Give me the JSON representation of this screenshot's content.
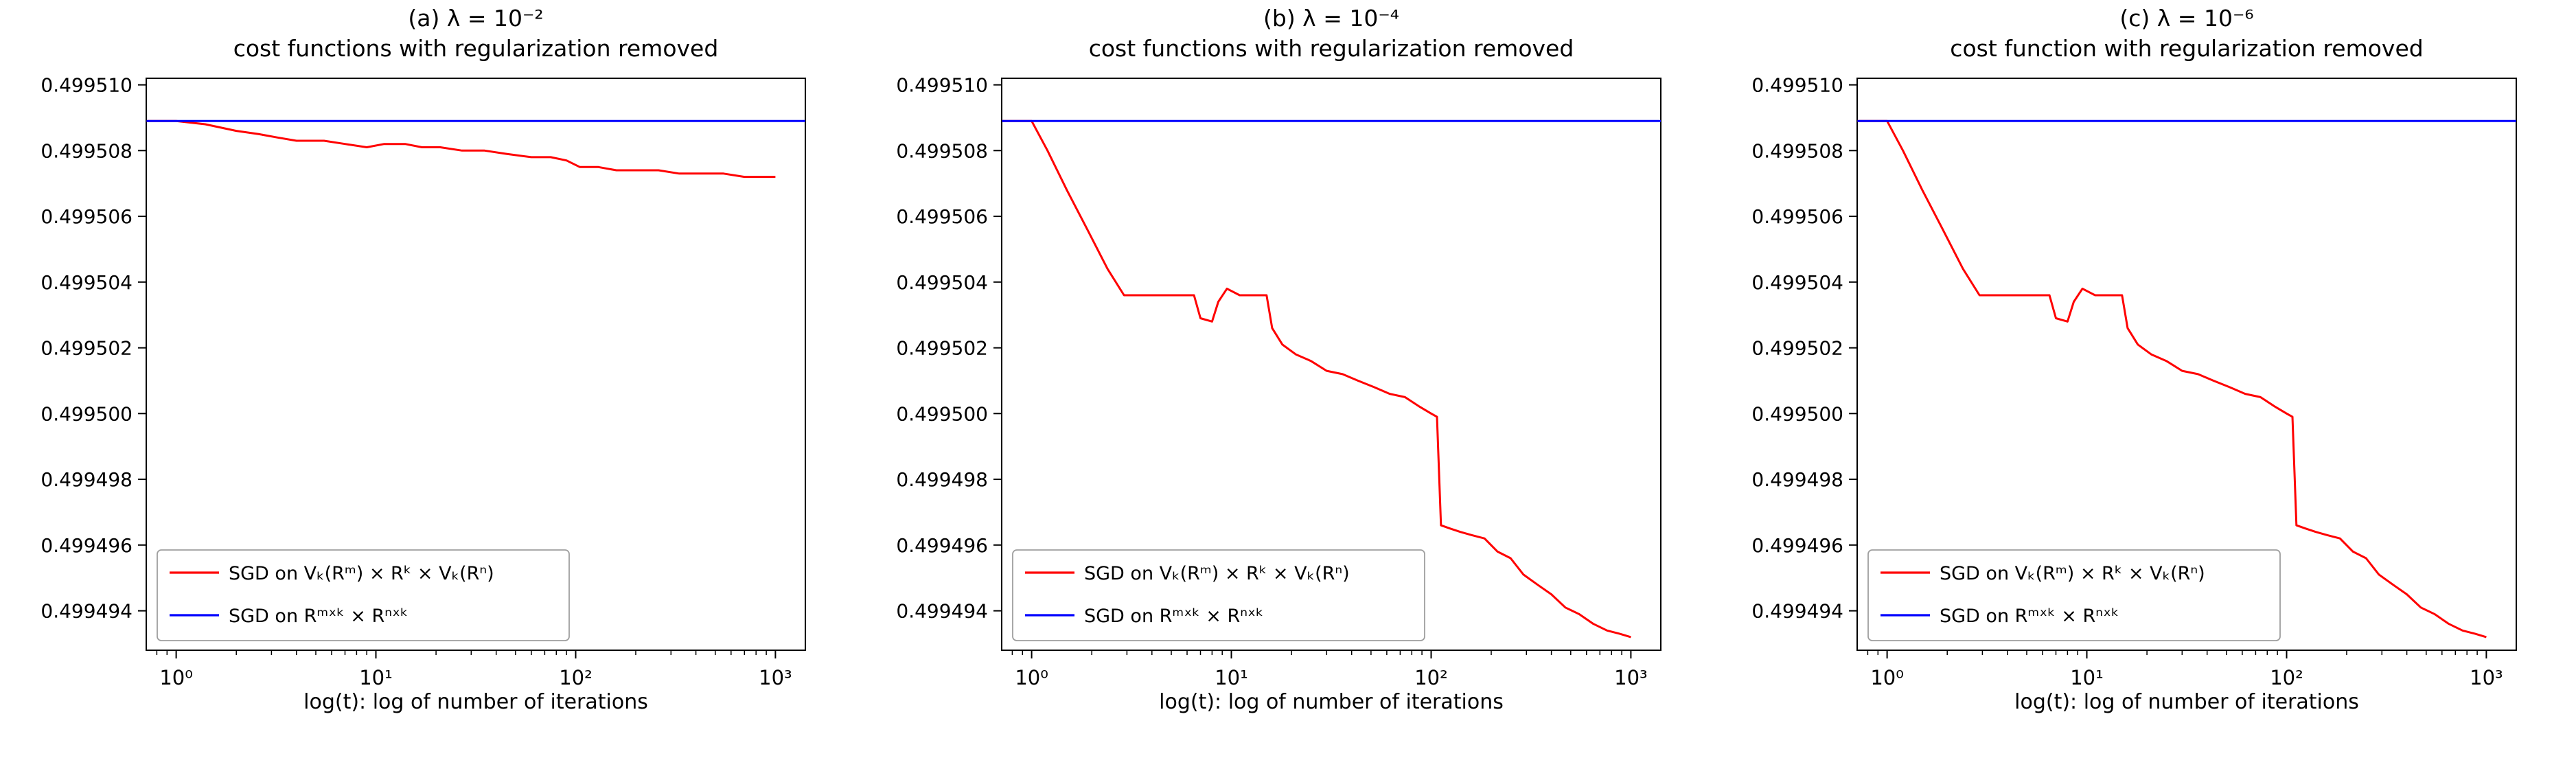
{
  "page": {
    "background": "#ffffff"
  },
  "chart_data": [
    {
      "type": "line",
      "letter_title": "(a) λ = 10⁻²",
      "title": "cost functions with regularization removed",
      "xlabel": "log(t): log of number of iterations",
      "xscale": "log",
      "xlim_log": [
        -0.15,
        3.15
      ],
      "ylim": [
        0.4994928,
        0.4995102
      ],
      "grid": false,
      "legend_position": "lower left",
      "x_ticks": [
        {
          "v": 1,
          "label": "10⁰"
        },
        {
          "v": 10,
          "label": "10¹"
        },
        {
          "v": 100,
          "label": "10²"
        },
        {
          "v": 1000,
          "label": "10³"
        }
      ],
      "y_ticks": [
        {
          "v": 0.499494,
          "label": "0.499494"
        },
        {
          "v": 0.499496,
          "label": "0.499496"
        },
        {
          "v": 0.499498,
          "label": "0.499498"
        },
        {
          "v": 0.4995,
          "label": "0.499500"
        },
        {
          "v": 0.499502,
          "label": "0.499502"
        },
        {
          "v": 0.499504,
          "label": "0.499504"
        },
        {
          "v": 0.499506,
          "label": "0.499506"
        },
        {
          "v": 0.499508,
          "label": "0.499508"
        },
        {
          "v": 0.49951,
          "label": "0.499510"
        }
      ],
      "series": [
        {
          "name": "SGD on Vₖ(Rᵐ) × Rᵏ × Vₖ(Rⁿ)",
          "color": "#ff0000",
          "points": [
            [
              0.71,
              0.4995089
            ],
            [
              1.0,
              0.4995089
            ],
            [
              1.4,
              0.4995088
            ],
            [
              2.0,
              0.4995086
            ],
            [
              2.6,
              0.4995085
            ],
            [
              3.2,
              0.4995084
            ],
            [
              4.0,
              0.4995083
            ],
            [
              5.5,
              0.4995083
            ],
            [
              7.0,
              0.4995082
            ],
            [
              9.0,
              0.4995081
            ],
            [
              11.0,
              0.4995082
            ],
            [
              14.0,
              0.4995082
            ],
            [
              17.0,
              0.4995081
            ],
            [
              21.0,
              0.4995081
            ],
            [
              27.0,
              0.499508
            ],
            [
              35.0,
              0.499508
            ],
            [
              45.0,
              0.4995079
            ],
            [
              60.0,
              0.4995078
            ],
            [
              75.0,
              0.4995078
            ],
            [
              90.0,
              0.4995077
            ],
            [
              105.0,
              0.4995075
            ],
            [
              130.0,
              0.4995075
            ],
            [
              160.0,
              0.4995074
            ],
            [
              200.0,
              0.4995074
            ],
            [
              260.0,
              0.4995074
            ],
            [
              330.0,
              0.4995073
            ],
            [
              420.0,
              0.4995073
            ],
            [
              550.0,
              0.4995073
            ],
            [
              700.0,
              0.4995072
            ],
            [
              850.0,
              0.4995072
            ],
            [
              1000.0,
              0.4995072
            ]
          ]
        },
        {
          "name": "SGD on Rᵐˣᵏ × Rⁿˣᵏ",
          "color": "#0000ff",
          "points": [
            [
              0.71,
              0.4995089
            ],
            [
              1413.0,
              0.4995089
            ]
          ]
        }
      ]
    },
    {
      "type": "line",
      "letter_title": "(b) λ = 10⁻⁴",
      "title": "cost functions with regularization removed",
      "xlabel": "log(t): log of number of iterations",
      "xscale": "log",
      "xlim_log": [
        -0.15,
        3.15
      ],
      "ylim": [
        0.4994928,
        0.4995102
      ],
      "grid": false,
      "legend_position": "lower left",
      "x_ticks": [
        {
          "v": 1,
          "label": "10⁰"
        },
        {
          "v": 10,
          "label": "10¹"
        },
        {
          "v": 100,
          "label": "10²"
        },
        {
          "v": 1000,
          "label": "10³"
        }
      ],
      "y_ticks": [
        {
          "v": 0.499494,
          "label": "0.499494"
        },
        {
          "v": 0.499496,
          "label": "0.499496"
        },
        {
          "v": 0.499498,
          "label": "0.499498"
        },
        {
          "v": 0.4995,
          "label": "0.499500"
        },
        {
          "v": 0.499502,
          "label": "0.499502"
        },
        {
          "v": 0.499504,
          "label": "0.499504"
        },
        {
          "v": 0.499506,
          "label": "0.499506"
        },
        {
          "v": 0.499508,
          "label": "0.499508"
        },
        {
          "v": 0.49951,
          "label": "0.499510"
        }
      ],
      "series": [
        {
          "name": "SGD on Vₖ(Rᵐ) × Rᵏ × Vₖ(Rⁿ)",
          "color": "#ff0000",
          "points": [
            [
              0.71,
              0.4995089
            ],
            [
              1.0,
              0.4995089
            ],
            [
              1.2,
              0.499508
            ],
            [
              1.5,
              0.4995068
            ],
            [
              1.9,
              0.4995056
            ],
            [
              2.4,
              0.4995044
            ],
            [
              2.9,
              0.4995036
            ],
            [
              3.5,
              0.4995036
            ],
            [
              5.0,
              0.4995036
            ],
            [
              6.5,
              0.4995036
            ],
            [
              7.0,
              0.4995029
            ],
            [
              8.0,
              0.4995028
            ],
            [
              8.6,
              0.4995034
            ],
            [
              9.5,
              0.4995038
            ],
            [
              11.0,
              0.4995036
            ],
            [
              13.0,
              0.4995036
            ],
            [
              15.0,
              0.4995036
            ],
            [
              16.0,
              0.4995026
            ],
            [
              18.0,
              0.4995021
            ],
            [
              21.0,
              0.4995018
            ],
            [
              25.0,
              0.4995016
            ],
            [
              30.0,
              0.4995013
            ],
            [
              36.0,
              0.4995012
            ],
            [
              43.0,
              0.499501
            ],
            [
              52.0,
              0.4995008
            ],
            [
              62.0,
              0.4995006
            ],
            [
              74.0,
              0.4995005
            ],
            [
              88.0,
              0.4995002
            ],
            [
              100.0,
              0.4995
            ],
            [
              107.0,
              0.4994999
            ],
            [
              112.0,
              0.4994966
            ],
            [
              125.0,
              0.4994965
            ],
            [
              140.0,
              0.4994964
            ],
            [
              160.0,
              0.4994963
            ],
            [
              185.0,
              0.4994962
            ],
            [
              215.0,
              0.4994958
            ],
            [
              250.0,
              0.4994956
            ],
            [
              290.0,
              0.4994951
            ],
            [
              340.0,
              0.4994948
            ],
            [
              400.0,
              0.4994945
            ],
            [
              470.0,
              0.4994941
            ],
            [
              550.0,
              0.4994939
            ],
            [
              650.0,
              0.4994936
            ],
            [
              760.0,
              0.4994934
            ],
            [
              880.0,
              0.4994933
            ],
            [
              1000.0,
              0.4994932
            ]
          ]
        },
        {
          "name": "SGD on Rᵐˣᵏ × Rⁿˣᵏ",
          "color": "#0000ff",
          "points": [
            [
              0.71,
              0.4995089
            ],
            [
              1413.0,
              0.4995089
            ]
          ]
        }
      ]
    },
    {
      "type": "line",
      "letter_title": "(c) λ = 10⁻⁶",
      "title": "cost function with regularization removed",
      "xlabel": "log(t): log of number of iterations",
      "xscale": "log",
      "xlim_log": [
        -0.15,
        3.15
      ],
      "ylim": [
        0.4994928,
        0.4995102
      ],
      "grid": false,
      "legend_position": "lower left",
      "x_ticks": [
        {
          "v": 1,
          "label": "10⁰"
        },
        {
          "v": 10,
          "label": "10¹"
        },
        {
          "v": 100,
          "label": "10²"
        },
        {
          "v": 1000,
          "label": "10³"
        }
      ],
      "y_ticks": [
        {
          "v": 0.499494,
          "label": "0.499494"
        },
        {
          "v": 0.499496,
          "label": "0.499496"
        },
        {
          "v": 0.499498,
          "label": "0.499498"
        },
        {
          "v": 0.4995,
          "label": "0.499500"
        },
        {
          "v": 0.499502,
          "label": "0.499502"
        },
        {
          "v": 0.499504,
          "label": "0.499504"
        },
        {
          "v": 0.499506,
          "label": "0.499506"
        },
        {
          "v": 0.499508,
          "label": "0.499508"
        },
        {
          "v": 0.49951,
          "label": "0.499510"
        }
      ],
      "series": [
        {
          "name": "SGD on Vₖ(Rᵐ) × Rᵏ × Vₖ(Rⁿ)",
          "color": "#ff0000",
          "points": [
            [
              0.71,
              0.4995089
            ],
            [
              1.0,
              0.4995089
            ],
            [
              1.2,
              0.499508
            ],
            [
              1.5,
              0.4995068
            ],
            [
              1.9,
              0.4995056
            ],
            [
              2.4,
              0.4995044
            ],
            [
              2.9,
              0.4995036
            ],
            [
              3.5,
              0.4995036
            ],
            [
              5.0,
              0.4995036
            ],
            [
              6.5,
              0.4995036
            ],
            [
              7.0,
              0.4995029
            ],
            [
              8.0,
              0.4995028
            ],
            [
              8.6,
              0.4995034
            ],
            [
              9.5,
              0.4995038
            ],
            [
              11.0,
              0.4995036
            ],
            [
              13.0,
              0.4995036
            ],
            [
              15.0,
              0.4995036
            ],
            [
              16.0,
              0.4995026
            ],
            [
              18.0,
              0.4995021
            ],
            [
              21.0,
              0.4995018
            ],
            [
              25.0,
              0.4995016
            ],
            [
              30.0,
              0.4995013
            ],
            [
              36.0,
              0.4995012
            ],
            [
              43.0,
              0.499501
            ],
            [
              52.0,
              0.4995008
            ],
            [
              62.0,
              0.4995006
            ],
            [
              74.0,
              0.4995005
            ],
            [
              88.0,
              0.4995002
            ],
            [
              100.0,
              0.4995
            ],
            [
              107.0,
              0.4994999
            ],
            [
              112.0,
              0.4994966
            ],
            [
              125.0,
              0.4994965
            ],
            [
              140.0,
              0.4994964
            ],
            [
              160.0,
              0.4994963
            ],
            [
              185.0,
              0.4994962
            ],
            [
              215.0,
              0.4994958
            ],
            [
              250.0,
              0.4994956
            ],
            [
              290.0,
              0.4994951
            ],
            [
              340.0,
              0.4994948
            ],
            [
              400.0,
              0.4994945
            ],
            [
              470.0,
              0.4994941
            ],
            [
              550.0,
              0.4994939
            ],
            [
              650.0,
              0.4994936
            ],
            [
              760.0,
              0.4994934
            ],
            [
              880.0,
              0.4994933
            ],
            [
              1000.0,
              0.4994932
            ]
          ]
        },
        {
          "name": "SGD on Rᵐˣᵏ × Rⁿˣᵏ",
          "color": "#0000ff",
          "points": [
            [
              0.71,
              0.4995089
            ],
            [
              1413.0,
              0.4995089
            ]
          ]
        }
      ]
    }
  ]
}
